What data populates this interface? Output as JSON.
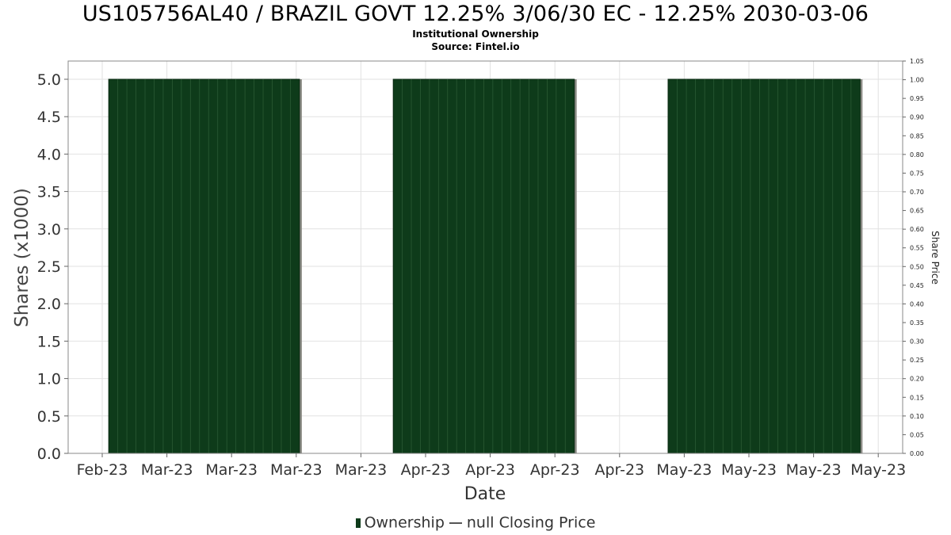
{
  "chart_data": {
    "type": "bar",
    "title": "US105756AL40 / BRAZIL GOVT 12.25% 3/06/30 EC - 12.25% 2030-03-06",
    "subtitle": "Institutional Ownership",
    "source": "Source: Fintel.io",
    "xlabel": "Date",
    "ylabel": "Shares (x1000)",
    "ylabel_right": "Share Price",
    "x_tick_labels": [
      "Feb-23",
      "Mar-23",
      "Mar-23",
      "Mar-23",
      "Mar-23",
      "Apr-23",
      "Apr-23",
      "Apr-23",
      "Apr-23",
      "May-23",
      "May-23",
      "May-23",
      "May-23"
    ],
    "ylim": [
      0,
      5.0
    ],
    "y_ticks": [
      "0.0",
      "0.5",
      "1.0",
      "1.5",
      "2.0",
      "2.5",
      "3.0",
      "3.5",
      "4.0",
      "4.5",
      "5.0"
    ],
    "ylim_right": [
      0,
      1.05
    ],
    "y_ticks_right": [
      "0.00",
      "0.05",
      "0.10",
      "0.15",
      "0.20",
      "0.25",
      "0.30",
      "0.35",
      "0.40",
      "0.45",
      "0.50",
      "0.55",
      "0.60",
      "0.65",
      "0.70",
      "0.75",
      "0.80",
      "0.85",
      "0.90",
      "0.95",
      "1.00",
      "1.05"
    ],
    "grid": true,
    "legend_position": "bottom",
    "series": [
      {
        "name": "Ownership",
        "color": "#0e3b1a",
        "segments": [
          {
            "start_tick": 0.1,
            "end_tick": 3.05,
            "value": 5.0
          },
          {
            "start_tick": 4.5,
            "end_tick": 7.3,
            "value": 5.0
          },
          {
            "start_tick": 8.75,
            "end_tick": 11.72,
            "value": 5.0
          }
        ]
      },
      {
        "name": "null Closing Price",
        "color": "#555555",
        "values": []
      }
    ]
  },
  "legend": {
    "ownership_label": "Ownership",
    "price_label": "null Closing Price"
  }
}
